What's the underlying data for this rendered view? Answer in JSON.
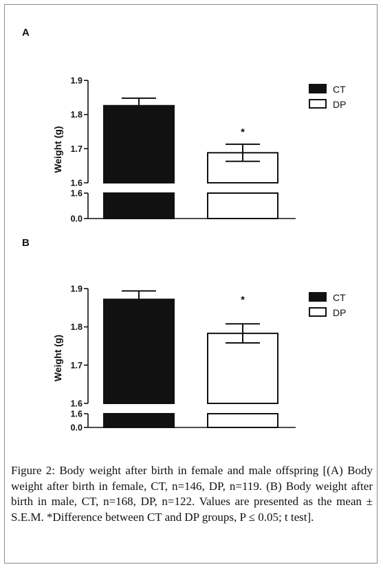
{
  "figure": {
    "caption_label": "Figure 2:",
    "caption_text": " Body weight after birth in female and male offspring [(A) Body weight after birth in female, CT, n=146, DP, n=119. (B) Body weight after birth in male, CT, n=168, DP, n=122. Values are presented as the mean ± S.E.M. *Difference between CT and DP groups, P ≤ 0.05; t test]."
  },
  "chart_data": [
    {
      "type": "bar",
      "panel_label": "A",
      "ylabel": "Weight (g)",
      "categories": [
        "CT",
        "DP"
      ],
      "values": [
        1.826,
        1.688
      ],
      "errors": [
        0.022,
        0.025
      ],
      "significance": [
        "",
        "*"
      ],
      "legend": {
        "placement": "top-right",
        "entries": [
          "CT",
          "DP"
        ]
      },
      "colors": {
        "CT": "#111111",
        "DP": "#ffffff"
      },
      "ylim": [
        1.6,
        1.9
      ],
      "y_break": {
        "lower_ticks": [
          "0.0",
          "1.6"
        ],
        "from": 0.0,
        "to": 1.6
      },
      "yticks": [
        "1.9",
        "1.8",
        "1.7",
        "1.6"
      ],
      "grid": false
    },
    {
      "type": "bar",
      "panel_label": "B",
      "ylabel": "Weight (g)",
      "categories": [
        "CT",
        "DP"
      ],
      "values": [
        1.872,
        1.783
      ],
      "errors": [
        0.022,
        0.025
      ],
      "significance": [
        "",
        "*"
      ],
      "legend": {
        "placement": "top-right",
        "entries": [
          "CT",
          "DP"
        ]
      },
      "colors": {
        "CT": "#111111",
        "DP": "#ffffff"
      },
      "ylim": [
        1.6,
        1.9
      ],
      "y_break": {
        "lower_ticks": [
          "0.0",
          "1.6"
        ],
        "from": 0.0,
        "to": 1.6
      },
      "yticks": [
        "1.9",
        "1.8",
        "1.7",
        "1.6"
      ],
      "grid": false
    }
  ]
}
